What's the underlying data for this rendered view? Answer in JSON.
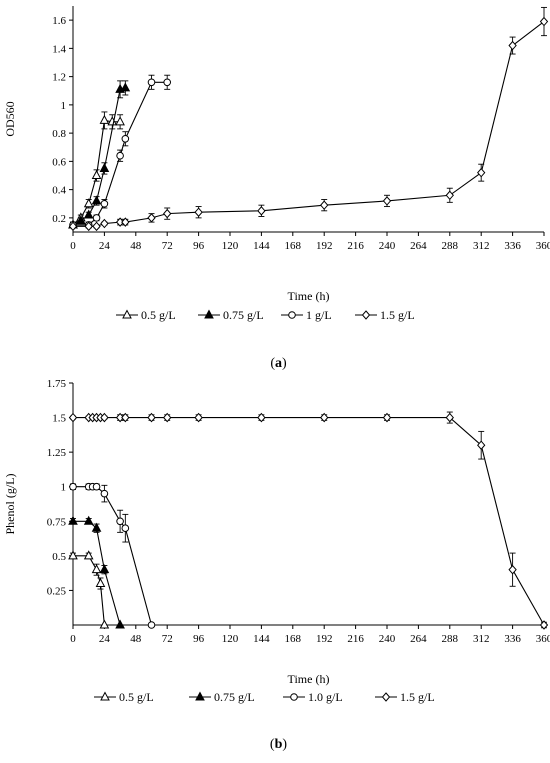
{
  "chart_data": [
    {
      "type": "line",
      "panel_label": "(a)",
      "xlabel": "Time (h)",
      "ylabel": "OD560",
      "xlim": [
        0,
        360
      ],
      "ylim": [
        0.1,
        1.7
      ],
      "xticks": [
        0,
        24,
        48,
        72,
        96,
        120,
        144,
        168,
        192,
        216,
        240,
        264,
        288,
        312,
        336,
        360
      ],
      "yticks": [
        0.2,
        0.4,
        0.6,
        0.8,
        1.0,
        1.2,
        1.4,
        1.6
      ],
      "ytick_labels": [
        "0.2",
        "0.4",
        "0.6",
        "0.8",
        "1",
        "1.2",
        "1.4",
        "1.6"
      ],
      "grid": false,
      "legend_position": "bottom",
      "series": [
        {
          "name": "0.5 g/L",
          "marker": "triangle-open",
          "x": [
            0,
            6,
            12,
            18,
            24,
            30,
            36
          ],
          "y": [
            0.15,
            0.2,
            0.3,
            0.5,
            0.89,
            0.88,
            0.88
          ],
          "err": [
            0.02,
            0.02,
            0.03,
            0.04,
            0.06,
            0.05,
            0.05
          ]
        },
        {
          "name": "0.75 g/L",
          "marker": "triangle-filled",
          "x": [
            0,
            6,
            12,
            18,
            24,
            36,
            40
          ],
          "y": [
            0.15,
            0.18,
            0.22,
            0.32,
            0.55,
            1.11,
            1.12
          ],
          "err": [
            0.02,
            0.02,
            0.02,
            0.03,
            0.04,
            0.06,
            0.05
          ]
        },
        {
          "name": "1 g/L",
          "marker": "circle-open",
          "x": [
            0,
            12,
            18,
            24,
            36,
            40,
            60,
            72
          ],
          "y": [
            0.15,
            0.15,
            0.2,
            0.3,
            0.64,
            0.76,
            1.16,
            1.16
          ],
          "err": [
            0.02,
            0.02,
            0.02,
            0.03,
            0.04,
            0.05,
            0.05,
            0.05
          ]
        },
        {
          "name": "1.5 g/L",
          "marker": "diamond-open",
          "x": [
            0,
            12,
            18,
            24,
            36,
            40,
            60,
            72,
            96,
            144,
            192,
            240,
            288,
            312,
            336,
            360
          ],
          "y": [
            0.14,
            0.14,
            0.14,
            0.16,
            0.17,
            0.17,
            0.2,
            0.23,
            0.24,
            0.25,
            0.29,
            0.32,
            0.36,
            0.52,
            1.42,
            1.59
          ],
          "err": [
            0.01,
            0.01,
            0.01,
            0.01,
            0.02,
            0.02,
            0.03,
            0.04,
            0.04,
            0.04,
            0.04,
            0.04,
            0.05,
            0.06,
            0.06,
            0.1
          ]
        }
      ]
    },
    {
      "type": "line",
      "panel_label": "(b)",
      "xlabel": "Time (h)",
      "ylabel": "Phenol (g/L)",
      "xlim": [
        0,
        360
      ],
      "ylim": [
        0,
        1.75
      ],
      "xticks": [
        0,
        24,
        48,
        72,
        96,
        120,
        144,
        168,
        192,
        216,
        240,
        264,
        288,
        312,
        336,
        360
      ],
      "yticks": [
        0.25,
        0.5,
        0.75,
        1.0,
        1.25,
        1.5,
        1.75
      ],
      "ytick_labels": [
        "0.25",
        "0.5",
        "0.75",
        "1",
        "1.25",
        "1.5",
        "1.75"
      ],
      "grid": false,
      "legend_position": "bottom",
      "series": [
        {
          "name": "0.5 g/L",
          "marker": "triangle-open",
          "x": [
            0,
            12,
            18,
            21,
            24
          ],
          "y": [
            0.5,
            0.5,
            0.4,
            0.3,
            0.0
          ],
          "err": [
            0.02,
            0.02,
            0.04,
            0.04,
            0.0
          ]
        },
        {
          "name": "0.75 g/L",
          "marker": "triangle-filled",
          "x": [
            0,
            12,
            18,
            24,
            36
          ],
          "y": [
            0.75,
            0.75,
            0.7,
            0.4,
            0.0
          ],
          "err": [
            0.02,
            0.02,
            0.03,
            0.03,
            0.0
          ]
        },
        {
          "name": "1.0 g/L",
          "marker": "circle-open",
          "x": [
            0,
            12,
            15,
            18,
            24,
            36,
            40,
            60
          ],
          "y": [
            1.0,
            1.0,
            1.0,
            1.0,
            0.95,
            0.75,
            0.7,
            0.0
          ],
          "err": [
            0.02,
            0.02,
            0.02,
            0.02,
            0.06,
            0.08,
            0.1,
            0.0
          ]
        },
        {
          "name": "1.5 g/L",
          "marker": "diamond-open",
          "x": [
            0,
            12,
            15,
            18,
            21,
            24,
            36,
            40,
            60,
            72,
            96,
            144,
            192,
            240,
            288,
            312,
            336,
            360
          ],
          "y": [
            1.5,
            1.5,
            1.5,
            1.5,
            1.5,
            1.5,
            1.5,
            1.5,
            1.5,
            1.5,
            1.5,
            1.5,
            1.5,
            1.5,
            1.5,
            1.3,
            0.4,
            0.0
          ],
          "err": [
            0.01,
            0.01,
            0.01,
            0.01,
            0.01,
            0.01,
            0.02,
            0.02,
            0.02,
            0.02,
            0.02,
            0.02,
            0.02,
            0.02,
            0.04,
            0.1,
            0.12,
            0.02
          ]
        }
      ]
    }
  ]
}
